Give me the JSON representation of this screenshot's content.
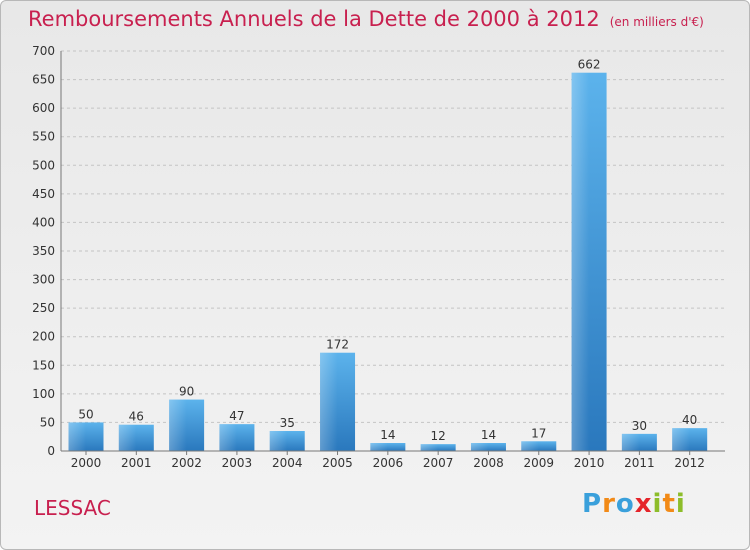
{
  "chart_data": {
    "type": "bar",
    "title": "Remboursements Annuels de la Dette de 2000 à 2012",
    "subtitle": "(en milliers d'€)",
    "categories": [
      "2000",
      "2001",
      "2002",
      "2003",
      "2004",
      "2005",
      "2006",
      "2007",
      "2008",
      "2009",
      "2010",
      "2011",
      "2012"
    ],
    "values": [
      50,
      46,
      90,
      47,
      35,
      172,
      14,
      12,
      14,
      17,
      662,
      30,
      40
    ],
    "ylim": [
      0,
      700
    ],
    "yticks": [
      0,
      50,
      100,
      150,
      200,
      250,
      300,
      350,
      400,
      450,
      500,
      550,
      600,
      650,
      700
    ],
    "grid": true,
    "bar_color": "#3a95dc",
    "title_color": "#c8204f"
  },
  "footer": {
    "town": "LESSAC",
    "logo_text": "Proxiti"
  }
}
